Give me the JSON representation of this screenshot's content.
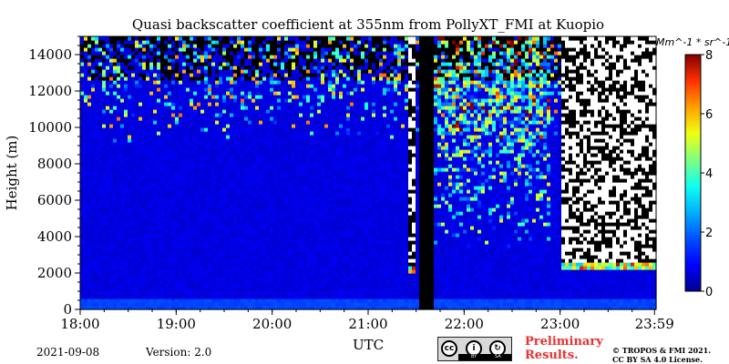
{
  "chart_data": {
    "type": "heatmap",
    "title": "Quasi backscatter coefficient at 355nm from PollyXT_FMI at Kuopio",
    "xlabel": "UTC",
    "ylabel": "Height (m)",
    "x_tick_labels": [
      "18:00",
      "19:00",
      "20:00",
      "21:00",
      "22:00",
      "23:00",
      "23:59"
    ],
    "x_range_hours": [
      18.0,
      24.0
    ],
    "y_ticks": [
      0,
      2000,
      4000,
      6000,
      8000,
      10000,
      12000,
      14000
    ],
    "ylim": [
      0,
      15000
    ],
    "colorbar": {
      "unit_label": "Mm^-1 * sr^-1",
      "range": [
        0,
        8
      ],
      "ticks": [
        0,
        2,
        4,
        6,
        8
      ],
      "colormap": [
        "#00008f",
        "#0000ff",
        "#0050ff",
        "#00b0ff",
        "#10ffef",
        "#80ff80",
        "#f0ff10",
        "#ffa000",
        "#ff3000",
        "#800000"
      ]
    },
    "features": {
      "surface_layer_top_m": 700,
      "background_level": 0.5,
      "noisy_above_m": 9000,
      "no_data_gap_utc": [
        21.54,
        21.7
      ],
      "cloud_base_segments": [
        {
          "start_utc": 21.42,
          "end_utc": 21.5,
          "base_m": 2000
        },
        {
          "start_utc": 23.0,
          "end_utc": 23.99,
          "base_m": 2100
        }
      ]
    }
  },
  "footer": {
    "date": "2021-09-08",
    "version": "Version: 2.0",
    "preliminary_line1": "Preliminary",
    "preliminary_line2": "Results.",
    "copyright_line1": "© TROPOS & FMI 2021.",
    "copyright_line2": "CC BY SA 4.0 License.",
    "license_badge": {
      "by": "BY",
      "sa": "SA"
    }
  }
}
